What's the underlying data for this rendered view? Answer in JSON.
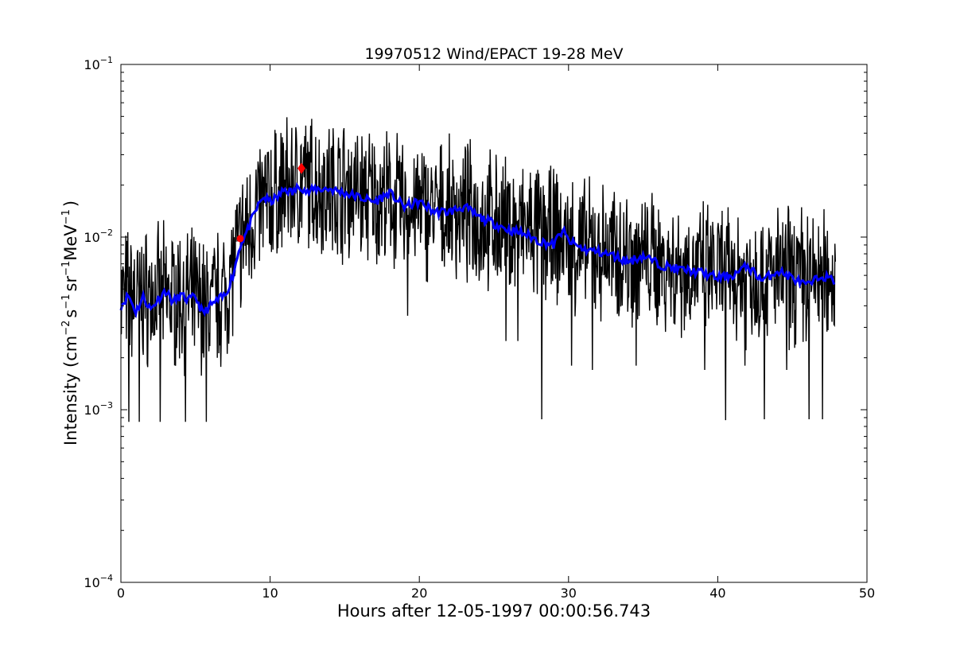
{
  "chart_data": {
    "type": "line",
    "title": "19970512 Wind/EPACT 19-28 MeV",
    "xlabel": "Hours after 12-05-1997 00:00:56.743",
    "ylabel": {
      "prefix": "Intensity (cm",
      "exp1": "−2",
      "mid1": "s",
      "exp2": "−1",
      "mid2": "sr",
      "exp3": "−1",
      "mid3": "MeV",
      "exp4": "−1",
      "suffix": ")"
    },
    "xlim": [
      0,
      50
    ],
    "ylim": [
      0.0001,
      0.1
    ],
    "yscale": "log",
    "grid": false,
    "x_ticks": [
      {
        "value": 0,
        "label": "0"
      },
      {
        "value": 10,
        "label": "10"
      },
      {
        "value": 20,
        "label": "20"
      },
      {
        "value": 30,
        "label": "30"
      },
      {
        "value": 40,
        "label": "40"
      },
      {
        "value": 50,
        "label": "50"
      }
    ],
    "y_ticks": [
      {
        "value": 0.0001,
        "base": "10",
        "exp": "−4"
      },
      {
        "value": 0.001,
        "base": "10",
        "exp": "−3"
      },
      {
        "value": 0.01,
        "base": "10",
        "exp": "−2"
      },
      {
        "value": 0.1,
        "base": "10",
        "exp": "−1"
      }
    ],
    "series": [
      {
        "role": "raw",
        "color": "#000000",
        "x_range": [
          0,
          47.9
        ],
        "anchors": [
          [
            0,
            0.0045
          ],
          [
            2,
            0.0045
          ],
          [
            4,
            0.0045
          ],
          [
            6,
            0.004
          ],
          [
            7,
            0.0048
          ],
          [
            8,
            0.009
          ],
          [
            9,
            0.014
          ],
          [
            10,
            0.017
          ],
          [
            11,
            0.019
          ],
          [
            12,
            0.021
          ],
          [
            13,
            0.02
          ],
          [
            15,
            0.019
          ],
          [
            17,
            0.017
          ],
          [
            19,
            0.015
          ],
          [
            21,
            0.014
          ],
          [
            23,
            0.014
          ],
          [
            25,
            0.012
          ],
          [
            27,
            0.011
          ],
          [
            29,
            0.01
          ],
          [
            31,
            0.0085
          ],
          [
            33,
            0.008
          ],
          [
            35,
            0.0075
          ],
          [
            38,
            0.0065
          ],
          [
            41,
            0.006
          ],
          [
            44,
            0.006
          ],
          [
            47.9,
            0.0058
          ]
        ],
        "spikes": [
          [
            0.5,
            0.00085
          ],
          [
            1.2,
            0.00085
          ],
          [
            2.6,
            0.00085
          ],
          [
            4.3,
            0.00085
          ],
          [
            5.7,
            0.00085
          ],
          [
            28.2,
            0.00088
          ],
          [
            40.5,
            0.00087
          ],
          [
            43.1,
            0.00088
          ],
          [
            46.1,
            0.00088
          ],
          [
            47.0,
            0.00088
          ],
          [
            19.2,
            0.0035
          ],
          [
            25.8,
            0.0025
          ],
          [
            26.6,
            0.0025
          ],
          [
            30.2,
            0.0018
          ],
          [
            31.6,
            0.0017
          ],
          [
            34.5,
            0.0018
          ],
          [
            39.1,
            0.0017
          ],
          [
            41.8,
            0.0018
          ],
          [
            44.6,
            0.0017
          ]
        ]
      },
      {
        "role": "smoothed",
        "color": "#0000ff",
        "anchors": [
          [
            0,
            0.004
          ],
          [
            0.5,
            0.0046
          ],
          [
            1,
            0.0037
          ],
          [
            1.5,
            0.0045
          ],
          [
            2,
            0.0038
          ],
          [
            2.5,
            0.0044
          ],
          [
            3,
            0.0049
          ],
          [
            3.5,
            0.0042
          ],
          [
            4,
            0.0046
          ],
          [
            4.5,
            0.0043
          ],
          [
            5,
            0.0045
          ],
          [
            5.5,
            0.0036
          ],
          [
            6,
            0.004
          ],
          [
            6.5,
            0.0043
          ],
          [
            7,
            0.0046
          ],
          [
            7.5,
            0.006
          ],
          [
            8,
            0.009
          ],
          [
            8.5,
            0.011
          ],
          [
            9,
            0.014
          ],
          [
            9.5,
            0.017
          ],
          [
            10,
            0.016
          ],
          [
            10.5,
            0.017
          ],
          [
            11,
            0.019
          ],
          [
            11.5,
            0.018
          ],
          [
            12,
            0.02
          ],
          [
            12.5,
            0.018
          ],
          [
            13,
            0.019
          ],
          [
            14,
            0.019
          ],
          [
            15,
            0.018
          ],
          [
            16,
            0.017
          ],
          [
            17,
            0.016
          ],
          [
            18,
            0.018
          ],
          [
            19,
            0.015
          ],
          [
            20,
            0.016
          ],
          [
            21,
            0.014
          ],
          [
            22,
            0.014
          ],
          [
            23,
            0.015
          ],
          [
            24,
            0.013
          ],
          [
            25,
            0.012
          ],
          [
            26,
            0.011
          ],
          [
            27,
            0.0105
          ],
          [
            28,
            0.0095
          ],
          [
            29,
            0.009
          ],
          [
            29.6,
            0.011
          ],
          [
            30,
            0.0095
          ],
          [
            31,
            0.0085
          ],
          [
            32,
            0.0082
          ],
          [
            33,
            0.0078
          ],
          [
            34,
            0.0072
          ],
          [
            35,
            0.0078
          ],
          [
            36,
            0.007
          ],
          [
            37,
            0.0066
          ],
          [
            38,
            0.0064
          ],
          [
            39,
            0.0062
          ],
          [
            40,
            0.0058
          ],
          [
            41,
            0.006
          ],
          [
            42,
            0.0068
          ],
          [
            43,
            0.0056
          ],
          [
            44,
            0.0064
          ],
          [
            45,
            0.0058
          ],
          [
            46,
            0.0052
          ],
          [
            47,
            0.006
          ],
          [
            47.9,
            0.0055
          ]
        ]
      }
    ],
    "markers": [
      {
        "x": 8.0,
        "y": 0.0098,
        "color": "#ff0000",
        "shape": "circle"
      },
      {
        "x": 12.1,
        "y": 0.025,
        "color": "#ff0000",
        "shape": "diamond"
      }
    ]
  }
}
